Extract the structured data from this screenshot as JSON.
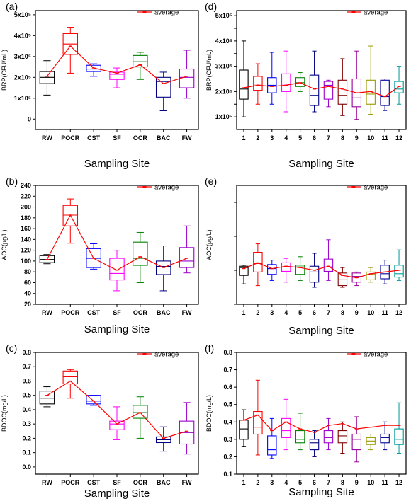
{
  "legend_label": "average",
  "colors": {
    "average_line": "#ff0000",
    "left_boxes": [
      "#000000",
      "#ff0000",
      "#0000ff",
      "#ff00ff",
      "#008000",
      "#000080",
      "#9900cc"
    ],
    "right_boxes": [
      "#000000",
      "#ff0000",
      "#0000ff",
      "#ff00ff",
      "#008000",
      "#000080",
      "#9900cc",
      "#800000",
      "#990099",
      "#999900",
      "#000099",
      "#009999"
    ]
  },
  "chart_data": [
    {
      "panel": "(a)",
      "type": "box",
      "xlabel": "Sampling Site",
      "ylabel": "BRP(CFU/mL)",
      "categories": [
        "RW",
        "POCR",
        "CST",
        "SF",
        "OCR",
        "BAC",
        "FW"
      ],
      "ylim": [
        -50000,
        520000
      ],
      "yticks": [
        0,
        100000,
        200000,
        300000,
        400000,
        500000
      ],
      "yticklabels": [
        "0",
        "1x10⁵",
        "2x10⁵",
        "3x10⁵",
        "4x10⁵",
        "5x10⁵"
      ],
      "boxes": [
        {
          "min": 115000,
          "q1": 170000,
          "median": 200000,
          "q3": 228000,
          "max": 280000
        },
        {
          "min": 220000,
          "q1": 310000,
          "median": 360000,
          "q3": 410000,
          "max": 440000
        },
        {
          "min": 205000,
          "q1": 228000,
          "median": 240000,
          "q3": 258000,
          "max": 265000
        },
        {
          "min": 150000,
          "q1": 190000,
          "median": 215000,
          "q3": 225000,
          "max": 245000
        },
        {
          "min": 190000,
          "q1": 250000,
          "median": 275000,
          "q3": 305000,
          "max": 320000
        },
        {
          "min": 40000,
          "q1": 105000,
          "median": 180000,
          "q3": 200000,
          "max": 225000
        },
        {
          "min": 100000,
          "q1": 150000,
          "median": 200000,
          "q3": 240000,
          "max": 330000
        }
      ],
      "average": [
        205000,
        350000,
        245000,
        220000,
        260000,
        170000,
        205000
      ]
    },
    {
      "panel": "(d)",
      "type": "box",
      "xlabel": "Sampling Site",
      "ylabel": "BRP(CFU/mL)",
      "categories": [
        "1",
        "2",
        "3",
        "4",
        "5",
        "6",
        "7",
        "8",
        "9",
        "10",
        "11",
        "12"
      ],
      "ylim": [
        50000,
        520000
      ],
      "yticks": [
        100000,
        150000,
        200000,
        250000,
        300000,
        350000,
        400000,
        450000,
        500000
      ],
      "yticklabels": [
        "1x10⁵",
        "",
        "2x10⁵",
        "",
        "3x10⁵",
        "",
        "4x10⁵",
        "",
        "5x10⁵"
      ],
      "boxes": [
        {
          "min": 100000,
          "q1": 170000,
          "median": 210000,
          "q3": 285000,
          "max": 400000
        },
        {
          "min": 150000,
          "q1": 205000,
          "median": 230000,
          "q3": 260000,
          "max": 310000
        },
        {
          "min": 150000,
          "q1": 195000,
          "median": 225000,
          "q3": 255000,
          "max": 355000
        },
        {
          "min": 120000,
          "q1": 200000,
          "median": 230000,
          "q3": 270000,
          "max": 360000
        },
        {
          "min": 200000,
          "q1": 220000,
          "median": 235000,
          "q3": 255000,
          "max": 275000
        },
        {
          "min": 120000,
          "q1": 145000,
          "median": 185000,
          "q3": 265000,
          "max": 360000
        },
        {
          "min": 140000,
          "q1": 170000,
          "median": 225000,
          "q3": 240000,
          "max": 245000
        },
        {
          "min": 105000,
          "q1": 150000,
          "median": 185000,
          "q3": 245000,
          "max": 330000
        },
        {
          "min": 90000,
          "q1": 140000,
          "median": 175000,
          "q3": 250000,
          "max": 360000
        },
        {
          "min": 110000,
          "q1": 150000,
          "median": 190000,
          "q3": 245000,
          "max": 380000
        },
        {
          "min": 125000,
          "q1": 145000,
          "median": 180000,
          "q3": 245000,
          "max": 250000
        },
        {
          "min": 150000,
          "q1": 195000,
          "median": 210000,
          "q3": 240000,
          "max": 300000
        }
      ],
      "average": [
        215000,
        225000,
        220000,
        225000,
        235000,
        210000,
        220000,
        210000,
        195000,
        200000,
        180000,
        220000
      ]
    },
    {
      "panel": "(b)",
      "type": "box",
      "xlabel": "Sampling Site",
      "ylabel": "AOC(µg/L)",
      "categories": [
        "RW",
        "POCR",
        "CST",
        "SF",
        "OCR",
        "BAC",
        "FW"
      ],
      "ylim": [
        20,
        240
      ],
      "yticks": [
        20,
        40,
        60,
        80,
        100,
        120,
        140,
        160,
        180,
        200,
        220,
        240
      ],
      "yticklabels": [
        "20",
        "40",
        "60",
        "80",
        "100",
        "120",
        "140",
        "160",
        "180",
        "200",
        "220",
        "240"
      ],
      "boxes": [
        {
          "min": 95,
          "q1": 97,
          "median": 103,
          "q3": 110,
          "max": 112
        },
        {
          "min": 133,
          "q1": 165,
          "median": 185,
          "q3": 203,
          "max": 215
        },
        {
          "min": 85,
          "q1": 88,
          "median": 105,
          "q3": 123,
          "max": 132
        },
        {
          "min": 45,
          "q1": 65,
          "median": 77,
          "q3": 105,
          "max": 120
        },
        {
          "min": 60,
          "q1": 92,
          "median": 105,
          "q3": 135,
          "max": 153
        },
        {
          "min": 45,
          "q1": 75,
          "median": 90,
          "q3": 100,
          "max": 128
        },
        {
          "min": 78,
          "q1": 88,
          "median": 100,
          "q3": 125,
          "max": 165
        }
      ],
      "average": [
        103,
        185,
        105,
        83,
        108,
        88,
        105
      ]
    },
    {
      "panel": "(e)",
      "type": "box",
      "xlabel": "Sampling Site",
      "ylabel": "AOC(µg/L)",
      "categories": [
        "1",
        "2",
        "3",
        "4",
        "5",
        "6",
        "7",
        "8",
        "9",
        "10",
        "11",
        "12"
      ],
      "ylim": [
        0,
        350
      ],
      "yticks": [
        0,
        100,
        200,
        300
      ],
      "yticklabels": [
        "",
        "",
        "",
        ""
      ],
      "boxes": [
        {
          "min": 60,
          "q1": 85,
          "median": 108,
          "q3": 112,
          "max": 115
        },
        {
          "min": 55,
          "q1": 95,
          "median": 120,
          "q3": 153,
          "max": 178
        },
        {
          "min": 70,
          "q1": 88,
          "median": 105,
          "q3": 117,
          "max": 130
        },
        {
          "min": 65,
          "q1": 97,
          "median": 110,
          "q3": 122,
          "max": 135
        },
        {
          "min": 70,
          "q1": 88,
          "median": 110,
          "q3": 115,
          "max": 140
        },
        {
          "min": 50,
          "q1": 65,
          "median": 95,
          "q3": 112,
          "max": 150
        },
        {
          "min": 70,
          "q1": 97,
          "median": 110,
          "q3": 133,
          "max": 190
        },
        {
          "min": 50,
          "q1": 55,
          "median": 72,
          "q3": 92,
          "max": 108
        },
        {
          "min": 55,
          "q1": 65,
          "median": 82,
          "q3": 92,
          "max": 95
        },
        {
          "min": 65,
          "q1": 72,
          "median": 88,
          "q3": 95,
          "max": 108
        },
        {
          "min": 60,
          "q1": 75,
          "median": 90,
          "q3": 115,
          "max": 130
        },
        {
          "min": 70,
          "q1": 80,
          "median": 90,
          "q3": 115,
          "max": 160
        }
      ],
      "average": [
        105,
        122,
        105,
        112,
        108,
        100,
        112,
        85,
        78,
        90,
        95,
        100
      ]
    },
    {
      "panel": "(c)",
      "type": "box",
      "xlabel": "Sampling Site",
      "ylabel": "BDOC(mg/L)",
      "categories": [
        "RW",
        "POCR",
        "CST",
        "SF",
        "OCR",
        "BAC",
        "FW"
      ],
      "ylim": [
        -0.05,
        0.8
      ],
      "yticks": [
        0.0,
        0.1,
        0.2,
        0.3,
        0.4,
        0.5,
        0.6,
        0.7,
        0.8
      ],
      "yticklabels": [
        "0.0",
        "0.1",
        "0.2",
        "0.3",
        "0.4",
        "0.5",
        "0.6",
        "0.7",
        "0.8"
      ],
      "boxes": [
        {
          "min": 0.42,
          "q1": 0.44,
          "median": 0.48,
          "q3": 0.53,
          "max": 0.56
        },
        {
          "min": 0.48,
          "q1": 0.58,
          "median": 0.63,
          "q3": 0.67,
          "max": 0.68
        },
        {
          "min": 0.43,
          "q1": 0.44,
          "median": 0.46,
          "q3": 0.5,
          "max": 0.5
        },
        {
          "min": 0.19,
          "q1": 0.26,
          "median": 0.3,
          "q3": 0.32,
          "max": 0.42
        },
        {
          "min": 0.2,
          "q1": 0.34,
          "median": 0.38,
          "q3": 0.43,
          "max": 0.49
        },
        {
          "min": 0.11,
          "q1": 0.17,
          "median": 0.19,
          "q3": 0.21,
          "max": 0.28
        },
        {
          "min": 0.09,
          "q1": 0.16,
          "median": 0.24,
          "q3": 0.32,
          "max": 0.45
        }
      ],
      "average": [
        0.5,
        0.6,
        0.46,
        0.3,
        0.38,
        0.2,
        0.25
      ]
    },
    {
      "panel": "(f)",
      "type": "box",
      "xlabel": "Sampling Site",
      "ylabel": "BDOC(mg/L)",
      "categories": [
        "1",
        "2",
        "3",
        "4",
        "5",
        "6",
        "7",
        "8",
        "9",
        "10",
        "11",
        "12"
      ],
      "ylim": [
        0.1,
        0.8
      ],
      "yticks": [
        0.1,
        0.2,
        0.3,
        0.4,
        0.5,
        0.6,
        0.7,
        0.8
      ],
      "yticklabels": [
        "0.1",
        "0.2",
        "0.3",
        "0.4",
        "0.5",
        "0.6",
        "0.7",
        "0.8"
      ],
      "boxes": [
        {
          "min": 0.26,
          "q1": 0.3,
          "median": 0.36,
          "q3": 0.41,
          "max": 0.47
        },
        {
          "min": 0.21,
          "q1": 0.33,
          "median": 0.37,
          "q3": 0.46,
          "max": 0.64
        },
        {
          "min": 0.19,
          "q1": 0.21,
          "median": 0.24,
          "q3": 0.32,
          "max": 0.42
        },
        {
          "min": 0.24,
          "q1": 0.31,
          "median": 0.35,
          "q3": 0.42,
          "max": 0.53
        },
        {
          "min": 0.24,
          "q1": 0.28,
          "median": 0.3,
          "q3": 0.35,
          "max": 0.45
        },
        {
          "min": 0.2,
          "q1": 0.24,
          "median": 0.28,
          "q3": 0.3,
          "max": 0.35
        },
        {
          "min": 0.24,
          "q1": 0.28,
          "median": 0.31,
          "q3": 0.35,
          "max": 0.42
        },
        {
          "min": 0.22,
          "q1": 0.28,
          "median": 0.32,
          "q3": 0.35,
          "max": 0.4
        },
        {
          "min": 0.17,
          "q1": 0.24,
          "median": 0.3,
          "q3": 0.33,
          "max": 0.43
        },
        {
          "min": 0.24,
          "q1": 0.27,
          "median": 0.29,
          "q3": 0.31,
          "max": 0.33
        },
        {
          "min": 0.24,
          "q1": 0.28,
          "median": 0.31,
          "q3": 0.33,
          "max": 0.4
        },
        {
          "min": 0.22,
          "q1": 0.27,
          "median": 0.3,
          "q3": 0.36,
          "max": 0.51
        }
      ],
      "average": [
        0.41,
        0.44,
        0.35,
        0.4,
        0.36,
        0.34,
        0.38,
        0.39,
        0.36,
        0.37,
        0.38,
        0.38
      ]
    }
  ]
}
